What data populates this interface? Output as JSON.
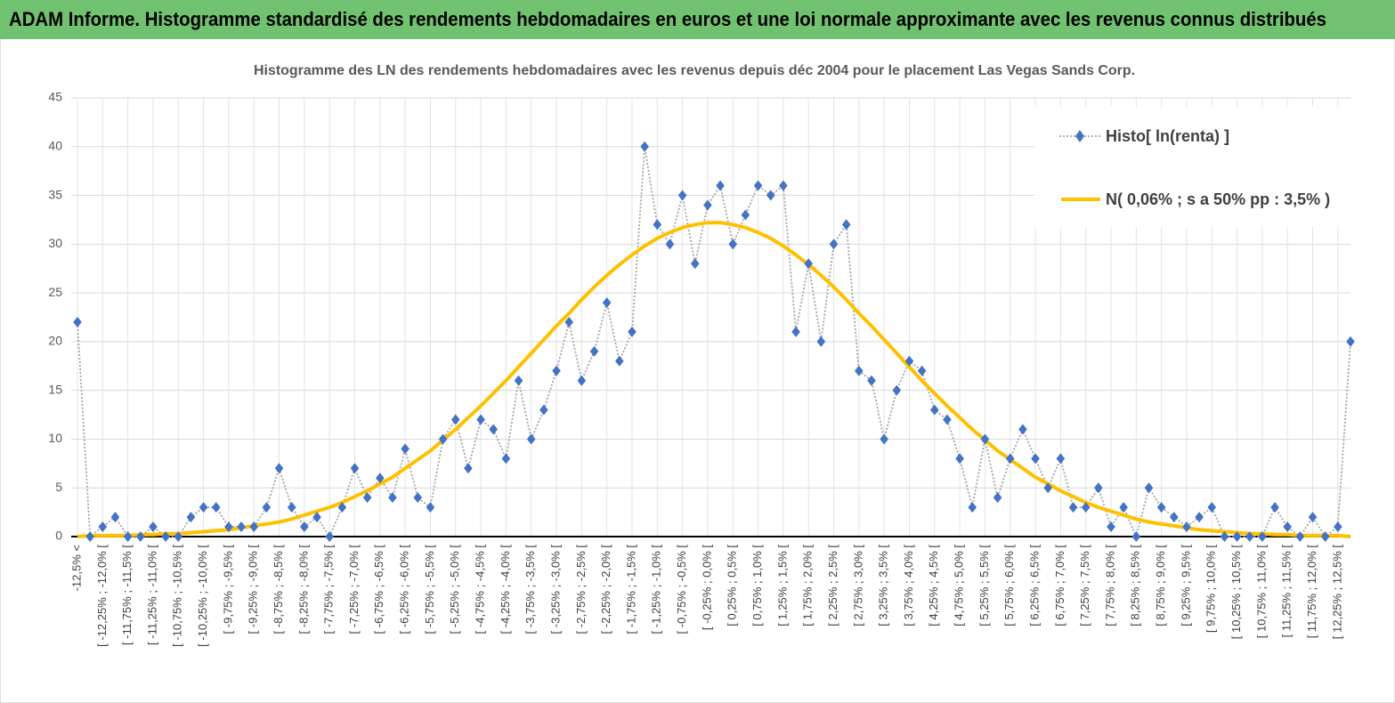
{
  "header": {
    "title": "ADAM Informe. Histogramme standardisé des rendements hebdomadaires en euros et une loi normale approximante avec les revenus connus distribués"
  },
  "chart_data": {
    "type": "line",
    "title": "Histogramme des LN des rendements hebdomadaires avec les revenus depuis déc 2004 pour le placement Las Vegas Sands Corp.",
    "categories": [
      "-12,5% <",
      null,
      "[ -12,25% ; -12,0% [",
      null,
      "[ -11,75% ; -11,5% [",
      null,
      "[ -11,25% ; -11,0% [",
      null,
      "[ -10,75% ; -10,5% [",
      null,
      "[ -10,25% ; -10,0% [",
      null,
      "[ -9,75% ; -9,5% [",
      null,
      "[ -9,25% ; -9,0% [",
      null,
      "[ -8,75% ; -8,5% [",
      null,
      "[ -8,25% ; -8,0% [",
      null,
      "[ -7,75% ; -7,5% [",
      null,
      "[ -7,25% ; -7,0% [",
      null,
      "[ -6,75% ; -6,5% [",
      null,
      "[ -6,25% ; -6,0% [",
      null,
      "[ -5,75% ; -5,5% [",
      null,
      "[ -5,25% ; -5,0% [",
      null,
      "[ -4,75% ; -4,5% [",
      null,
      "[ -4,25% ; -4,0% [",
      null,
      "[ -3,75% ; -3,5% [",
      null,
      "[ -3,25% ; -3,0% [",
      null,
      "[ -2,75% ; -2,5% [",
      null,
      "[ -2,25% ; -2,0% [",
      null,
      "[ -1,75% ; -1,5% [",
      null,
      "[ -1,25% ; -1,0% [",
      null,
      "[ -0,75% ; -0,5% [",
      null,
      "[ -0,25% ; 0,0% [",
      null,
      "[ 0,25% ; 0,5% [",
      null,
      "[ 0,75% ; 1,0% [",
      null,
      "[ 1,25% ; 1,5% [",
      null,
      "[ 1,75% ; 2,0% [",
      null,
      "[ 2,25% ; 2,5% [",
      null,
      "[ 2,75% ; 3,0% [",
      null,
      "[ 3,25% ; 3,5% [",
      null,
      "[ 3,75% ; 4,0% [",
      null,
      "[ 4,25% ; 4,5% [",
      null,
      "[ 4,75% ; 5,0% [",
      null,
      "[ 5,25% ; 5,5% [",
      null,
      "[ 5,75% ; 6,0% [",
      null,
      "[ 6,25% ; 6,5% [",
      null,
      "[ 6,75% ; 7,0% [",
      null,
      "[ 7,25% ; 7,5% [",
      null,
      "[ 7,75% ; 8,0% [",
      null,
      "[ 8,25% ; 8,5% [",
      null,
      "[ 8,75% ; 9,0% [",
      null,
      "[ 9,25% ; 9,5% [",
      null,
      "[ 9,75% ; 10,0% [",
      null,
      "[ 10,25% ; 10,5% [",
      null,
      "[ 10,75% ; 11,0% [",
      null,
      "[ 11,25% ; 11,5% [",
      null,
      "[ 11,75% ; 12,0% [",
      null,
      "[ 12,25% ; 12,5% [",
      null
    ],
    "series": [
      {
        "name": "Histo[ ln(renta) ]",
        "color": "#4472c4",
        "line_color": "#a5a5a5",
        "values": [
          22,
          0,
          1,
          2,
          0,
          0,
          1,
          0,
          0,
          2,
          3,
          3,
          1,
          1,
          1,
          3,
          7,
          3,
          1,
          2,
          0,
          3,
          7,
          4,
          6,
          4,
          9,
          4,
          3,
          10,
          12,
          7,
          12,
          11,
          8,
          16,
          10,
          13,
          17,
          22,
          16,
          19,
          24,
          18,
          21,
          40,
          32,
          30,
          35,
          28,
          34,
          36,
          30,
          33,
          36,
          35,
          36,
          21,
          28,
          20,
          30,
          32,
          17,
          16,
          10,
          15,
          18,
          17,
          13,
          12,
          8,
          3,
          10,
          4,
          8,
          11,
          8,
          5,
          8,
          3,
          3,
          5,
          1,
          3,
          0,
          5,
          3,
          2,
          1,
          2,
          3,
          0,
          0,
          0,
          0,
          3,
          1,
          0,
          2,
          0,
          1,
          20
        ]
      },
      {
        "name": "N( 0,06% ; s a 50% pp : 3,5% )",
        "color": "#ffc000",
        "values": [
          0.0,
          0.1,
          0.1,
          0.1,
          0.1,
          0.2,
          0.2,
          0.3,
          0.3,
          0.4,
          0.5,
          0.6,
          0.7,
          0.9,
          1.1,
          1.3,
          1.5,
          1.8,
          2.2,
          2.6,
          3.0,
          3.5,
          4.1,
          4.7,
          5.4,
          6.1,
          7.0,
          7.9,
          8.8,
          9.9,
          11.0,
          12.2,
          13.4,
          14.7,
          16.0,
          17.4,
          18.8,
          20.2,
          21.6,
          22.9,
          24.3,
          25.6,
          26.8,
          27.9,
          28.9,
          29.8,
          30.6,
          31.2,
          31.7,
          32.0,
          32.2,
          32.2,
          32.0,
          31.7,
          31.2,
          30.6,
          29.8,
          28.9,
          27.9,
          26.8,
          25.6,
          24.3,
          22.9,
          21.6,
          20.2,
          18.8,
          17.4,
          16.0,
          14.7,
          13.4,
          12.2,
          11.0,
          9.9,
          8.8,
          7.9,
          7.0,
          6.1,
          5.4,
          4.7,
          4.1,
          3.5,
          3.0,
          2.6,
          2.2,
          1.8,
          1.5,
          1.3,
          1.1,
          0.9,
          0.7,
          0.6,
          0.5,
          0.4,
          0.3,
          0.3,
          0.2,
          0.2,
          0.1,
          0.1,
          0.1,
          0.1,
          0.0
        ]
      }
    ],
    "ylim": [
      0,
      45
    ],
    "yticks": [
      0,
      5,
      10,
      15,
      20,
      25,
      30,
      35,
      40,
      45
    ],
    "grid": true,
    "legend": "top-right"
  }
}
